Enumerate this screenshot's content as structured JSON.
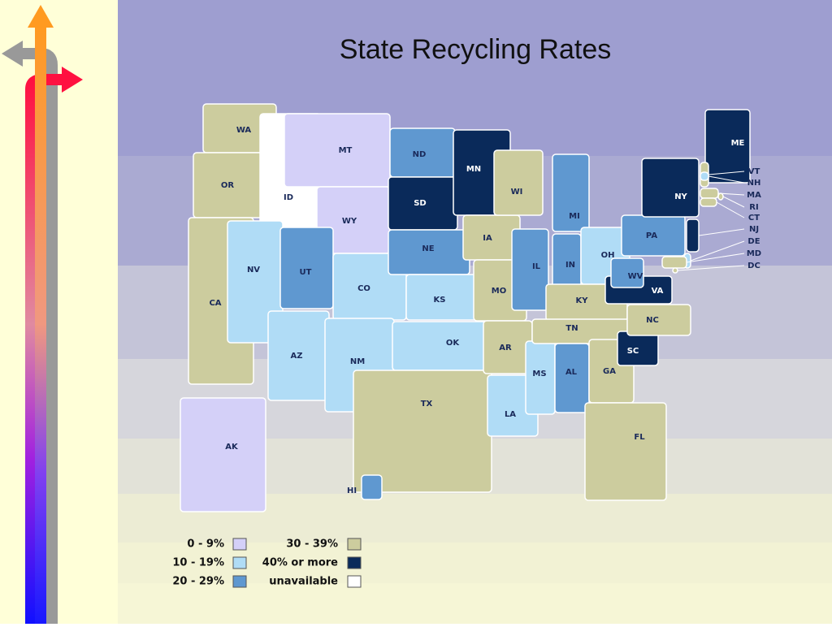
{
  "title": "State Recycling Rates",
  "legend": [
    {
      "label": "0 - 9%",
      "color": "#d4d0f8"
    },
    {
      "label": "10 - 19%",
      "color": "#b0dcf6"
    },
    {
      "label": "20 - 29%",
      "color": "#5f98d0"
    },
    {
      "label": "30 - 39%",
      "color": "#cccc9e"
    },
    {
      "label": "40% or more",
      "color": "#0a2a5a"
    },
    {
      "label": "unavailable",
      "color": "#ffffff"
    }
  ],
  "states": [
    {
      "label": "WA",
      "legend": 3
    },
    {
      "label": "OR",
      "legend": 3
    },
    {
      "label": "CA",
      "legend": 3
    },
    {
      "label": "ID",
      "legend": 5
    },
    {
      "label": "MT",
      "legend": 0
    },
    {
      "label": "WY",
      "legend": 0
    },
    {
      "label": "NV",
      "legend": 1
    },
    {
      "label": "UT",
      "legend": 2
    },
    {
      "label": "CO",
      "legend": 1
    },
    {
      "label": "AZ",
      "legend": 1
    },
    {
      "label": "NM",
      "legend": 1
    },
    {
      "label": "ND",
      "legend": 2
    },
    {
      "label": "SD",
      "legend": 4
    },
    {
      "label": "NE",
      "legend": 2
    },
    {
      "label": "KS",
      "legend": 1
    },
    {
      "label": "OK",
      "legend": 1
    },
    {
      "label": "TX",
      "legend": 3
    },
    {
      "label": "MN",
      "legend": 4
    },
    {
      "label": "IA",
      "legend": 3
    },
    {
      "label": "MO",
      "legend": 3
    },
    {
      "label": "AR",
      "legend": 3
    },
    {
      "label": "LA",
      "legend": 1
    },
    {
      "label": "WI",
      "legend": 3
    },
    {
      "label": "IL",
      "legend": 2
    },
    {
      "label": "MS",
      "legend": 1
    },
    {
      "label": "MI",
      "legend": 2
    },
    {
      "label": "IN",
      "legend": 2
    },
    {
      "label": "OH",
      "legend": 1
    },
    {
      "label": "KY",
      "legend": 3
    },
    {
      "label": "TN",
      "legend": 3
    },
    {
      "label": "AL",
      "legend": 2
    },
    {
      "label": "GA",
      "legend": 3
    },
    {
      "label": "FL",
      "legend": 3
    },
    {
      "label": "SC",
      "legend": 4
    },
    {
      "label": "NC",
      "legend": 3
    },
    {
      "label": "VA",
      "legend": 4
    },
    {
      "label": "WV",
      "legend": 2
    },
    {
      "label": "PA",
      "legend": 2
    },
    {
      "label": "NY",
      "legend": 4
    },
    {
      "label": "ME",
      "legend": 4
    },
    {
      "label": "AK",
      "legend": 0
    },
    {
      "label": "HI",
      "legend": 2
    },
    {
      "label": "VT",
      "legend": 3
    },
    {
      "label": "NH",
      "legend": 1
    },
    {
      "label": "MA",
      "legend": 3
    },
    {
      "label": "RI",
      "legend": 3
    },
    {
      "label": "CT",
      "legend": 3
    },
    {
      "label": "NJ",
      "legend": 4
    },
    {
      "label": "DE",
      "legend": 1
    },
    {
      "label": "MD",
      "legend": 3
    },
    {
      "label": "DC",
      "legend": 3
    }
  ]
}
